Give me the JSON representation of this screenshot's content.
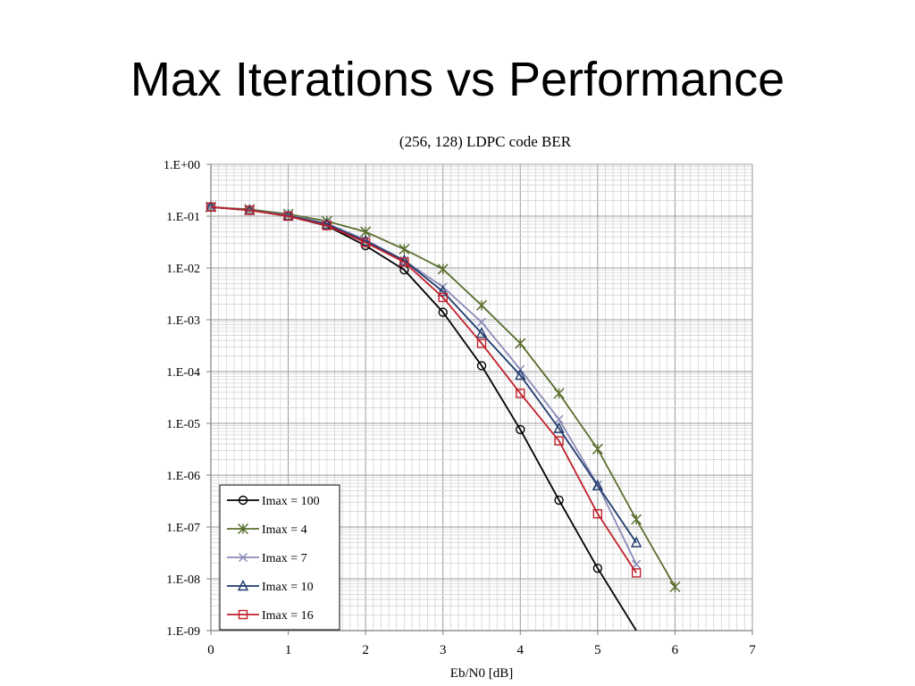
{
  "slide": {
    "title": "Max Iterations vs Performance"
  },
  "chart_data": {
    "type": "line",
    "title": "(256, 128) LDPC code BER",
    "xlabel": "Eb/N0 [dB]",
    "ylabel": "",
    "xlim": [
      0,
      7
    ],
    "ylim_log10": [
      -9,
      0
    ],
    "y_scale": "log",
    "grid": true,
    "legend_position": "bottom-left",
    "x_ticks": [
      "0",
      "1",
      "2",
      "3",
      "4",
      "5",
      "6",
      "7"
    ],
    "y_ticks": [
      "1.E+00",
      "1.E-01",
      "1.E-02",
      "1.E-03",
      "1.E-04",
      "1.E-05",
      "1.E-06",
      "1.E-07",
      "1.E-08",
      "1.E-09"
    ],
    "series": [
      {
        "name": "Imax = 100",
        "color": "#000000",
        "marker": "circle",
        "x": [
          0,
          0.5,
          1,
          1.5,
          2,
          2.5,
          3,
          3.5,
          4,
          4.5,
          5,
          5.5
        ],
        "y": [
          0.15,
          0.13,
          0.1,
          0.065,
          0.027,
          0.0092,
          0.0014,
          0.00013,
          7.6e-06,
          3.3e-07,
          1.6e-08,
          1e-09
        ]
      },
      {
        "name": "Imax = 4",
        "color": "#5a6e2e",
        "marker": "asterisk",
        "x": [
          0,
          0.5,
          1,
          1.5,
          2,
          2.5,
          3,
          3.5,
          4,
          4.5,
          5,
          5.5,
          6
        ],
        "y": [
          0.15,
          0.135,
          0.11,
          0.08,
          0.05,
          0.023,
          0.0095,
          0.0019,
          0.00035,
          3.8e-05,
          3.2e-06,
          1.4e-07,
          7e-09
        ]
      },
      {
        "name": "Imax = 7",
        "color": "#8a8ab8",
        "marker": "x",
        "x": [
          0,
          0.5,
          1,
          1.5,
          2,
          2.5,
          3,
          3.5,
          4,
          4.5,
          5,
          5.5
        ],
        "y": [
          0.15,
          0.13,
          0.105,
          0.072,
          0.035,
          0.014,
          0.0043,
          0.0009,
          0.00011,
          1.2e-05,
          6.5e-07,
          1.9e-08
        ]
      },
      {
        "name": "Imax = 10",
        "color": "#1f3a6e",
        "marker": "triangle",
        "x": [
          0,
          0.5,
          1,
          1.5,
          2,
          2.5,
          3,
          3.5,
          4,
          4.5,
          5,
          5.5
        ],
        "y": [
          0.15,
          0.13,
          0.102,
          0.07,
          0.033,
          0.014,
          0.0035,
          0.00055,
          8.5e-05,
          8e-06,
          6.3e-07,
          5e-08
        ]
      },
      {
        "name": "Imax = 16",
        "color": "#c0202a",
        "marker": "square",
        "x": [
          0,
          0.5,
          1,
          1.5,
          2,
          2.5,
          3,
          3.5,
          4,
          4.5,
          5,
          5.5
        ],
        "y": [
          0.15,
          0.13,
          0.1,
          0.066,
          0.031,
          0.013,
          0.0027,
          0.00035,
          3.8e-05,
          4.6e-06,
          1.8e-07,
          1.3e-08
        ]
      }
    ]
  }
}
